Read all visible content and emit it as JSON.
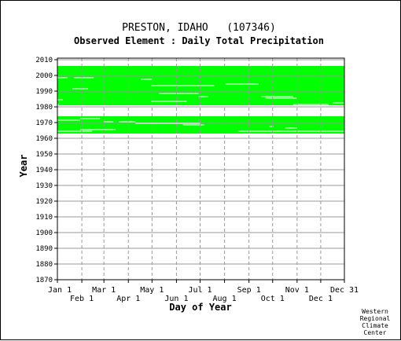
{
  "chart_data": {
    "type": "heatmap",
    "title": "PRESTON, IDAHO   (107346)",
    "subtitle": "Observed Element : Daily Total Precipitation",
    "xlabel": "Day of Year",
    "ylabel": "Year",
    "ylim": [
      1870,
      2011
    ],
    "xlim": [
      1,
      365
    ],
    "x_ticks_top_row": [
      {
        "label": "Jan 1",
        "day": 1
      },
      {
        "label": "Mar 1",
        "day": 60
      },
      {
        "label": "May 1",
        "day": 121
      },
      {
        "label": "Jul 1",
        "day": 182
      },
      {
        "label": "Sep 1",
        "day": 244
      },
      {
        "label": "Nov 1",
        "day": 305
      },
      {
        "label": "Dec 31",
        "day": 365
      }
    ],
    "x_ticks_bottom_row": [
      {
        "label": "Feb 1",
        "day": 32
      },
      {
        "label": "Apr 1",
        "day": 91
      },
      {
        "label": "Jun 1",
        "day": 152
      },
      {
        "label": "Aug 1",
        "day": 213
      },
      {
        "label": "Oct 1",
        "day": 274
      },
      {
        "label": "Dec 1",
        "day": 335
      }
    ],
    "y_ticks": [
      2010,
      2000,
      1990,
      1980,
      1970,
      1960,
      1950,
      1940,
      1930,
      1920,
      1910,
      1900,
      1890,
      1880,
      1870
    ],
    "grid": true,
    "data_color": "#00ff00",
    "data_coverage": [
      {
        "start_year": 1981,
        "end_year": 2005,
        "start_day": 1,
        "end_day": 365
      },
      {
        "start_year": 1963,
        "end_year": 1973,
        "start_day": 1,
        "end_day": 365
      }
    ],
    "data_gaps": [
      {
        "year": 1998,
        "start_day": 1,
        "end_day": 14
      },
      {
        "year": 1998,
        "start_day": 22,
        "end_day": 47
      },
      {
        "year": 1997,
        "start_day": 107,
        "end_day": 121
      },
      {
        "year": 1994,
        "start_day": 214,
        "end_day": 256
      },
      {
        "year": 1993,
        "start_day": 120,
        "end_day": 200
      },
      {
        "year": 1991,
        "start_day": 20,
        "end_day": 40
      },
      {
        "year": 1988,
        "start_day": 130,
        "end_day": 180
      },
      {
        "year": 1986,
        "start_day": 180,
        "end_day": 192
      },
      {
        "year": 1986,
        "start_day": 260,
        "end_day": 300
      },
      {
        "year": 1985,
        "start_day": 265,
        "end_day": 305
      },
      {
        "year": 1984,
        "start_day": 1,
        "end_day": 8
      },
      {
        "year": 1983,
        "start_day": 120,
        "end_day": 165
      },
      {
        "year": 1982,
        "start_day": 350,
        "end_day": 365
      },
      {
        "year": 1981,
        "start_day": 1,
        "end_day": 3
      },
      {
        "year": 1981,
        "start_day": 300,
        "end_day": 345
      },
      {
        "year": 1972,
        "start_day": 30,
        "end_day": 55
      },
      {
        "year": 1971,
        "start_day": 1,
        "end_day": 30
      },
      {
        "year": 1970,
        "start_day": 60,
        "end_day": 72
      },
      {
        "year": 1970,
        "start_day": 79,
        "end_day": 100
      },
      {
        "year": 1969,
        "start_day": 100,
        "end_day": 182
      },
      {
        "year": 1968,
        "start_day": 160,
        "end_day": 187
      },
      {
        "year": 1967,
        "start_day": 270,
        "end_day": 275
      },
      {
        "year": 1966,
        "start_day": 290,
        "end_day": 305
      },
      {
        "year": 1965,
        "start_day": 30,
        "end_day": 75
      },
      {
        "year": 1964,
        "start_day": 1,
        "end_day": 45
      },
      {
        "year": 1964,
        "start_day": 230,
        "end_day": 365
      }
    ]
  },
  "credit": [
    "Western",
    "Regional",
    "Climate",
    "Center"
  ]
}
